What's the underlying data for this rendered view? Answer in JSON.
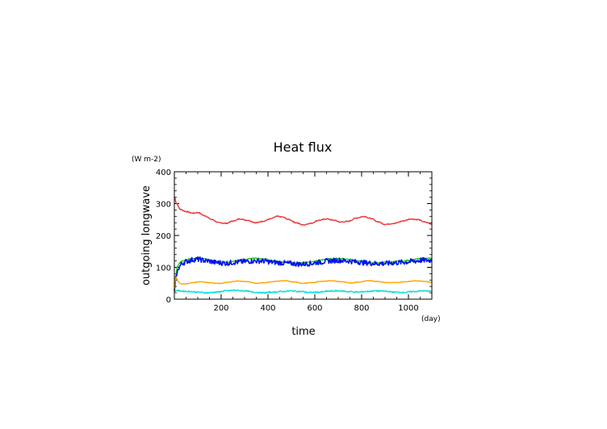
{
  "chart_data": {
    "type": "line",
    "title": "Heat flux",
    "xlabel": "time",
    "ylabel": "outgoing longwave",
    "x_unit": "(day)",
    "y_unit": "(W m-2)",
    "xlim": [
      0,
      1100
    ],
    "ylim": [
      0,
      400
    ],
    "xticks": [
      200,
      400,
      600,
      800,
      1000
    ],
    "yticks": [
      0,
      100,
      200,
      300,
      400
    ],
    "x_minor_step": 50,
    "y_minor_step": 20,
    "grid": false,
    "legend": "none",
    "series": [
      {
        "color": "#ee3333",
        "noise": 1.5,
        "x": [
          0,
          10,
          25,
          50,
          80,
          100,
          130,
          160,
          190,
          220,
          250,
          280,
          310,
          350,
          380,
          410,
          440,
          460,
          490,
          520,
          550,
          580,
          620,
          650,
          680,
          710,
          740,
          780,
          810,
          840,
          870,
          900,
          940,
          980,
          1010,
          1040,
          1070,
          1100
        ],
        "y": [
          322,
          300,
          282,
          275,
          270,
          272,
          262,
          250,
          240,
          238,
          245,
          252,
          248,
          240,
          245,
          252,
          260,
          258,
          250,
          240,
          233,
          238,
          248,
          252,
          248,
          242,
          244,
          255,
          260,
          253,
          243,
          235,
          238,
          246,
          252,
          250,
          242,
          236
        ]
      },
      {
        "color": "#22cc22",
        "noise": 2,
        "x": [
          0,
          5,
          12,
          20,
          30,
          40,
          60,
          80,
          100,
          140,
          180,
          220,
          260,
          300,
          340,
          380,
          420,
          460,
          500,
          540,
          580,
          620,
          660,
          700,
          740,
          780,
          820,
          860,
          900,
          940,
          980,
          1020,
          1060,
          1100
        ],
        "y": [
          30,
          70,
          100,
          112,
          118,
          122,
          126,
          128,
          130,
          125,
          118,
          116,
          120,
          125,
          128,
          126,
          120,
          117,
          114,
          113,
          116,
          122,
          126,
          128,
          126,
          120,
          115,
          114,
          116,
          118,
          120,
          124,
          128,
          128
        ]
      },
      {
        "color": "#0011ee",
        "noise": 8,
        "x": [
          0,
          5,
          10,
          20,
          30,
          40,
          60,
          80,
          100,
          140,
          180,
          220,
          260,
          300,
          340,
          380,
          420,
          460,
          500,
          540,
          580,
          620,
          660,
          700,
          740,
          780,
          820,
          860,
          900,
          940,
          980,
          1020,
          1060,
          1100
        ],
        "y": [
          20,
          50,
          80,
          100,
          110,
          115,
          120,
          124,
          125,
          120,
          115,
          113,
          116,
          118,
          120,
          120,
          116,
          114,
          112,
          110,
          112,
          116,
          120,
          122,
          120,
          117,
          114,
          112,
          112,
          114,
          116,
          119,
          122,
          122
        ]
      },
      {
        "color": "#ffa500",
        "noise": 1,
        "x": [
          0,
          4,
          8,
          14,
          20,
          30,
          50,
          80,
          110,
          150,
          190,
          230,
          270,
          310,
          350,
          390,
          430,
          470,
          510,
          550,
          590,
          630,
          670,
          710,
          750,
          790,
          830,
          870,
          910,
          950,
          990,
          1030,
          1070,
          1100
        ],
        "y": [
          30,
          60,
          70,
          58,
          52,
          48,
          48,
          52,
          55,
          52,
          49,
          53,
          57,
          55,
          50,
          52,
          56,
          58,
          54,
          50,
          52,
          56,
          58,
          55,
          51,
          54,
          58,
          56,
          52,
          52,
          55,
          58,
          56,
          53
        ]
      },
      {
        "color": "#00dddd",
        "noise": 2,
        "x": [
          0,
          5,
          10,
          20,
          40,
          70,
          100,
          140,
          180,
          220,
          260,
          300,
          340,
          380,
          420,
          460,
          500,
          540,
          580,
          620,
          660,
          700,
          740,
          780,
          820,
          860,
          900,
          940,
          980,
          1020,
          1060,
          1100
        ],
        "y": [
          18,
          26,
          28,
          26,
          25,
          24,
          22,
          20,
          22,
          26,
          28,
          26,
          22,
          20,
          22,
          24,
          26,
          24,
          21,
          22,
          25,
          26,
          24,
          22,
          24,
          26,
          25,
          22,
          21,
          24,
          26,
          25
        ]
      }
    ]
  }
}
